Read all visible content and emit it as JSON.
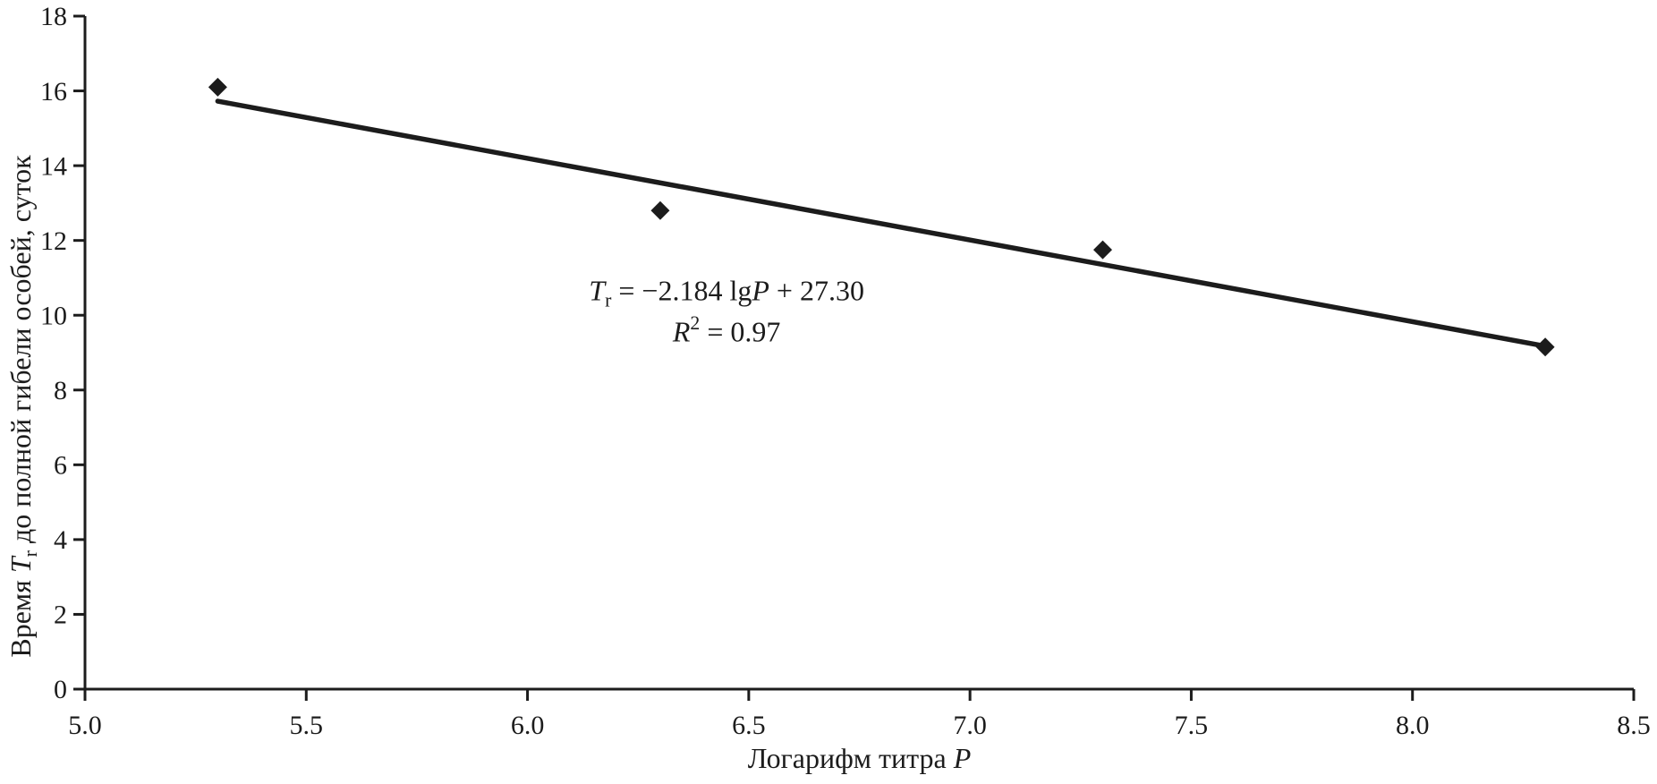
{
  "chart_data": {
    "type": "scatter",
    "title": "",
    "xlabel": "Логарифм титра P",
    "ylabel": "Время Tr до полной гибели особей, суток",
    "xlabel_runs": [
      {
        "t": "Логарифм титра ",
        "s": "n"
      },
      {
        "t": "P",
        "s": "i"
      }
    ],
    "ylabel_runs": [
      {
        "t": "Время ",
        "s": "n"
      },
      {
        "t": "T",
        "s": "i"
      },
      {
        "t": "r",
        "s": "sub"
      },
      {
        "t": " до полной гибели особей, суток",
        "s": "n"
      }
    ],
    "xlim": [
      5.0,
      8.5
    ],
    "ylim": [
      0,
      18
    ],
    "xticks": [
      {
        "v": 5.0,
        "label": "5.0"
      },
      {
        "v": 5.5,
        "label": "5.5"
      },
      {
        "v": 6.0,
        "label": "6.0"
      },
      {
        "v": 6.5,
        "label": "6.5"
      },
      {
        "v": 7.0,
        "label": "7.0"
      },
      {
        "v": 7.5,
        "label": "7.5"
      },
      {
        "v": 8.0,
        "label": "8.0"
      },
      {
        "v": 8.5,
        "label": "8.5"
      }
    ],
    "yticks": [
      {
        "v": 0,
        "label": "0"
      },
      {
        "v": 2,
        "label": "2"
      },
      {
        "v": 4,
        "label": "4"
      },
      {
        "v": 6,
        "label": "6"
      },
      {
        "v": 8,
        "label": "8"
      },
      {
        "v": 10,
        "label": "10"
      },
      {
        "v": 12,
        "label": "12"
      },
      {
        "v": 14,
        "label": "14"
      },
      {
        "v": 16,
        "label": "16"
      },
      {
        "v": 18,
        "label": "18"
      }
    ],
    "points": [
      {
        "x": 5.3,
        "y": 16.1
      },
      {
        "x": 6.3,
        "y": 12.8
      },
      {
        "x": 7.3,
        "y": 11.75
      },
      {
        "x": 8.3,
        "y": 9.15
      }
    ],
    "trendline": {
      "slope": -2.184,
      "intercept": 27.3,
      "x_start": 5.3,
      "x_end": 8.3
    },
    "annotation": {
      "anchor": {
        "x": 6.45,
        "y": 10.4
      },
      "equation_text": "Tr = −2.184 lgP + 27.30",
      "r_squared_text": "R2 = 0.97",
      "line1_runs": [
        {
          "t": "T",
          "s": "i"
        },
        {
          "t": "r",
          "s": "sub"
        },
        {
          "t": " = −2.184 lg",
          "s": "n"
        },
        {
          "t": "P",
          "s": "i"
        },
        {
          "t": " + 27.30",
          "s": "n"
        }
      ],
      "line2_runs": [
        {
          "t": "R",
          "s": "i"
        },
        {
          "t": "2",
          "s": "sup"
        },
        {
          "t": " = 0.97",
          "s": "n"
        }
      ]
    },
    "marker": "diamond",
    "grid": false,
    "legend": "none",
    "colors": {
      "ink": "#1c1c1c",
      "background": "#ffffff"
    }
  }
}
